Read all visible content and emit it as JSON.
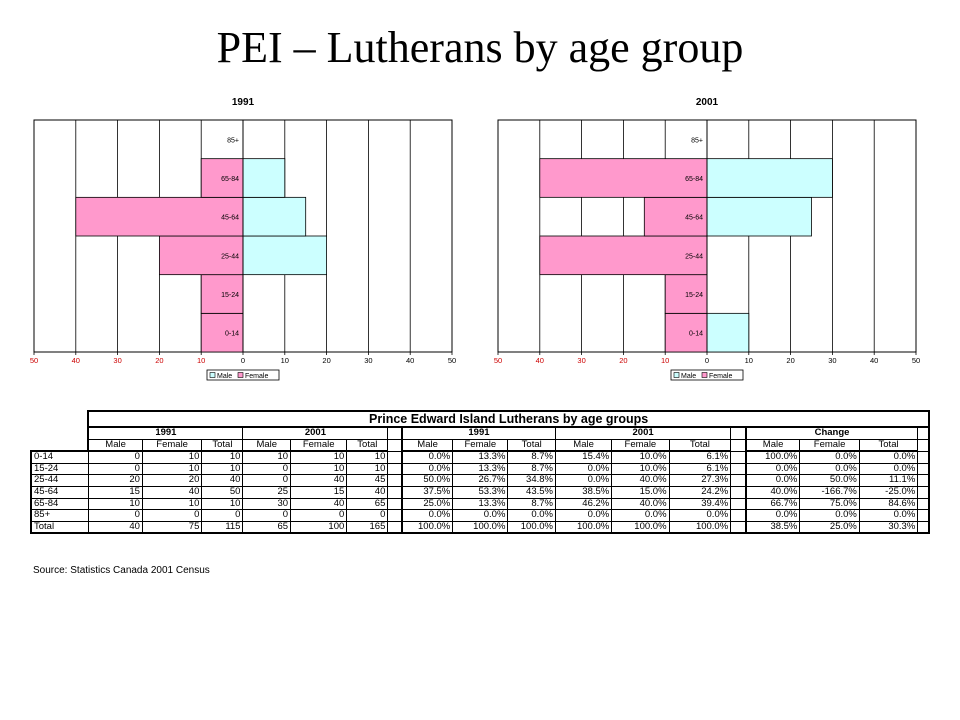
{
  "title": "PEI – Lutherans by age group",
  "chart_data": [
    {
      "type": "bar",
      "orientation": "horizontal-population-pyramid",
      "title": "1991",
      "categories": [
        "0-14",
        "15-24",
        "25-44",
        "45-64",
        "65-84",
        "85+"
      ],
      "series": [
        {
          "name": "Male",
          "values": [
            0,
            0,
            20,
            15,
            10,
            0
          ],
          "color": "#ccffff"
        },
        {
          "name": "Female",
          "values": [
            10,
            10,
            20,
            40,
            10,
            0
          ],
          "color": "#ff99cc"
        }
      ],
      "xlim": [
        -50,
        50
      ],
      "x_ticks": [
        "50",
        "40",
        "30",
        "20",
        "10",
        "0",
        "10",
        "20",
        "30",
        "40",
        "50"
      ],
      "legend": "bottom",
      "grid": true
    },
    {
      "type": "bar",
      "orientation": "horizontal-population-pyramid",
      "title": "2001",
      "categories": [
        "0-14",
        "15-24",
        "25-44",
        "45-64",
        "65-84",
        "85+"
      ],
      "series": [
        {
          "name": "Male",
          "values": [
            10,
            0,
            0,
            25,
            30,
            0
          ],
          "color": "#ccffff"
        },
        {
          "name": "Female",
          "values": [
            10,
            10,
            40,
            15,
            40,
            0
          ],
          "color": "#ff99cc"
        }
      ],
      "xlim": [
        -50,
        50
      ],
      "x_ticks": [
        "50",
        "40",
        "30",
        "20",
        "10",
        "0",
        "10",
        "20",
        "30",
        "40",
        "50"
      ],
      "legend": "bottom",
      "grid": true
    }
  ],
  "table": {
    "title": "Prince Edward Island Lutherans by age groups",
    "group_headers": {
      "counts": [
        "1991",
        "2001"
      ],
      "percents": [
        "1991",
        "2001"
      ],
      "change": "Change"
    },
    "columns": [
      "Male",
      "Female",
      "Total"
    ],
    "rows": [
      {
        "label": "0-14",
        "counts": [
          "0",
          "10",
          "10",
          "10",
          "10",
          "10"
        ],
        "pct": [
          "0.0%",
          "13.3%",
          "8.7%",
          "15.4%",
          "10.0%",
          "6.1%"
        ],
        "change": [
          "100.0%",
          "0.0%",
          "0.0%"
        ]
      },
      {
        "label": "15-24",
        "counts": [
          "0",
          "10",
          "10",
          "0",
          "10",
          "10"
        ],
        "pct": [
          "0.0%",
          "13.3%",
          "8.7%",
          "0.0%",
          "10.0%",
          "6.1%"
        ],
        "change": [
          "0.0%",
          "0.0%",
          "0.0%"
        ]
      },
      {
        "label": "25-44",
        "counts": [
          "20",
          "20",
          "40",
          "0",
          "40",
          "45"
        ],
        "pct": [
          "50.0%",
          "26.7%",
          "34.8%",
          "0.0%",
          "40.0%",
          "27.3%"
        ],
        "change": [
          "0.0%",
          "50.0%",
          "11.1%"
        ]
      },
      {
        "label": "45-64",
        "counts": [
          "15",
          "40",
          "50",
          "25",
          "15",
          "40"
        ],
        "pct": [
          "37.5%",
          "53.3%",
          "43.5%",
          "38.5%",
          "15.0%",
          "24.2%"
        ],
        "change": [
          "40.0%",
          "-166.7%",
          "-25.0%"
        ]
      },
      {
        "label": "65-84",
        "counts": [
          "10",
          "10",
          "10",
          "30",
          "40",
          "65"
        ],
        "pct": [
          "25.0%",
          "13.3%",
          "8.7%",
          "46.2%",
          "40.0%",
          "39.4%"
        ],
        "change": [
          "66.7%",
          "75.0%",
          "84.6%"
        ]
      },
      {
        "label": "85+",
        "counts": [
          "0",
          "0",
          "0",
          "0",
          "0",
          "0"
        ],
        "pct": [
          "0.0%",
          "0.0%",
          "0.0%",
          "0.0%",
          "0.0%",
          "0.0%"
        ],
        "change": [
          "0.0%",
          "0.0%",
          "0.0%"
        ]
      },
      {
        "label": "Total",
        "counts": [
          "40",
          "75",
          "115",
          "65",
          "100",
          "165"
        ],
        "pct": [
          "100.0%",
          "100.0%",
          "100.0%",
          "100.0%",
          "100.0%",
          "100.0%"
        ],
        "change": [
          "38.5%",
          "25.0%",
          "30.3%"
        ]
      }
    ],
    "source": "Source: Statistics Canada 2001 Census"
  }
}
